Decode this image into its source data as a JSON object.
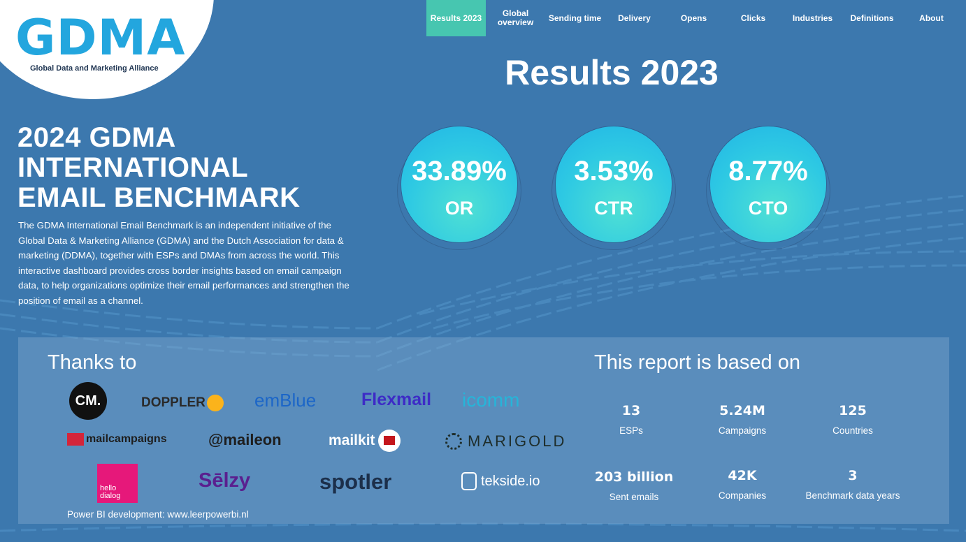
{
  "brand": {
    "logo_text": "GDMA",
    "logo_subtitle": "Global Data and Marketing Alliance"
  },
  "nav": {
    "items": [
      {
        "label": "Results 2023",
        "active": true
      },
      {
        "label": "Global overview",
        "active": false
      },
      {
        "label": "Sending time",
        "active": false
      },
      {
        "label": "Delivery",
        "active": false
      },
      {
        "label": "Opens",
        "active": false
      },
      {
        "label": "Clicks",
        "active": false
      },
      {
        "label": "Industries",
        "active": false
      },
      {
        "label": "Definitions",
        "active": false
      },
      {
        "label": "About",
        "active": false
      }
    ]
  },
  "results": {
    "title": "Results 2023",
    "metrics": [
      {
        "value": "33.89%",
        "label": "OR"
      },
      {
        "value": "3.53%",
        "label": "CTR"
      },
      {
        "value": "8.77%",
        "label": "CTO"
      }
    ]
  },
  "hero": {
    "title_line1": "2024 GDMA",
    "title_line2": "INTERNATIONAL",
    "title_line3": "EMAIL BENCHMARK",
    "description": "The GDMA International Email Benchmark is an independent initiative of the Global Data & Marketing Alliance (GDMA) and the Dutch Association for data & marketing (DDMA), together with ESPs and DMAs from across the world. This interactive dashboard provides cross border insights based on email campaign data, to help organizations optimize their email performances and strengthen the position of email as a channel."
  },
  "thanks": {
    "title": "Thanks to",
    "partners": [
      "CM.",
      "DOPPLER",
      "emBlue",
      "Flexmail",
      "icomm",
      "mailcampaigns",
      "@maileon",
      "mailkit",
      "MARIGOLD",
      "hello dialog",
      "Sēlzy",
      "spotler",
      "tekside.io"
    ],
    "credit": "Power BI development: www.leerpowerbi.nl"
  },
  "report": {
    "title": "This report is based on",
    "stats": [
      {
        "value": "13",
        "label": "ESPs"
      },
      {
        "value": "5.24M",
        "label": "Campaigns"
      },
      {
        "value": "125",
        "label": "Countries"
      },
      {
        "value": "203 billion",
        "label": "Sent emails"
      },
      {
        "value": "42K",
        "label": "Companies"
      },
      {
        "value": "3",
        "label": "Benchmark data years"
      }
    ]
  },
  "colors": {
    "background": "#3c78ae",
    "accent_active_tab": "#47c6b0",
    "circle_fill": "#2ec9e3",
    "logo_blue": "#23a6de"
  }
}
